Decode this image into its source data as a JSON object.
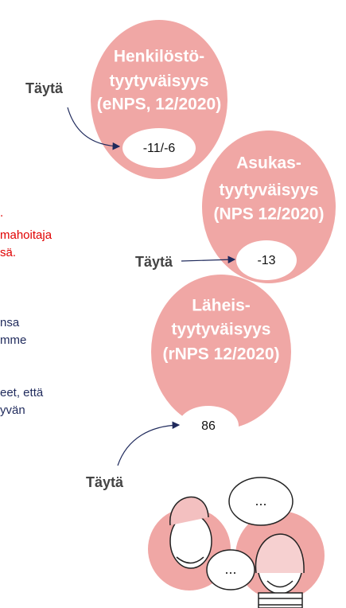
{
  "left_text": {
    "red_lines": [
      ".",
      "mahoitaja",
      "sä."
    ],
    "blue_lines": [
      "nsa",
      "mme",
      "eet, että",
      "yvän"
    ]
  },
  "bubbles": [
    {
      "lines": [
        "Henkilöstö-",
        "tyytyväisyys",
        "(eNPS, 12/2020)"
      ],
      "value": "-11/-6",
      "action": "Täytä"
    },
    {
      "lines": [
        "Asukas-",
        "tyytyväisyys",
        "(NPS 12/2020)"
      ],
      "value": "-13",
      "action": "Täytä"
    },
    {
      "lines": [
        "Läheis-",
        "tyytyväisyys",
        "(rNPS 12/2020)"
      ],
      "value": "86",
      "action": "Täytä"
    }
  ],
  "illustration": {
    "speech_bubbles": [
      "...",
      "..."
    ]
  }
}
